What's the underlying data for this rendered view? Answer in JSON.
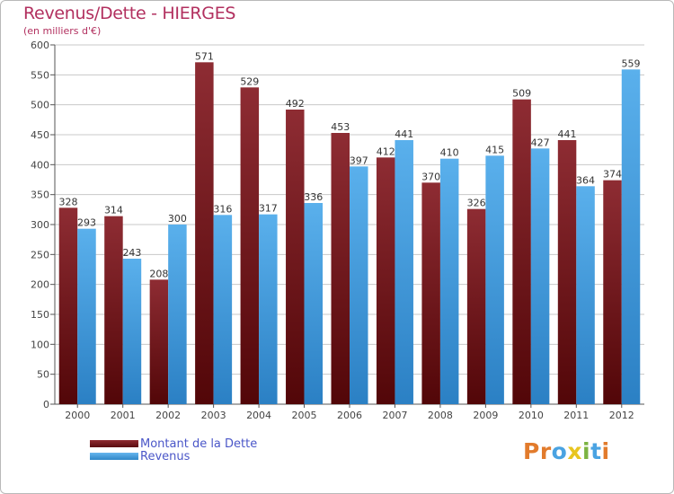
{
  "title": "Revenus/Dette - HIERGES",
  "subtitle": "(en milliers d'€)",
  "chart_data": {
    "type": "bar",
    "categories": [
      "2000",
      "2001",
      "2002",
      "2003",
      "2004",
      "2005",
      "2006",
      "2007",
      "2008",
      "2009",
      "2010",
      "2011",
      "2012"
    ],
    "series": [
      {
        "name": "Montant de la Dette",
        "color": "#7a1f24",
        "values": [
          328,
          314,
          208,
          571,
          529,
          492,
          453,
          412,
          370,
          326,
          509,
          441,
          374
        ]
      },
      {
        "name": "Revenus",
        "color": "#4aa3e2",
        "values": [
          293,
          243,
          300,
          316,
          317,
          336,
          397,
          441,
          410,
          415,
          427,
          364,
          559
        ]
      }
    ],
    "ylim": [
      0,
      600
    ],
    "yticks": [
      0,
      50,
      100,
      150,
      200,
      250,
      300,
      350,
      400,
      450,
      500,
      550,
      600
    ],
    "grid": true,
    "xlabel": "",
    "ylabel": ""
  },
  "legend": {
    "debt_label": "Montant de la Dette",
    "revenue_label": "Revenus"
  },
  "logo": {
    "letters": [
      "P",
      "r",
      "o",
      "x",
      "i",
      "t",
      "i"
    ],
    "colors": [
      "#e27b2c",
      "#e27b2c",
      "#4aa3e2",
      "#e8c520",
      "#7cb342",
      "#4aa3e2",
      "#e27b2c"
    ]
  }
}
